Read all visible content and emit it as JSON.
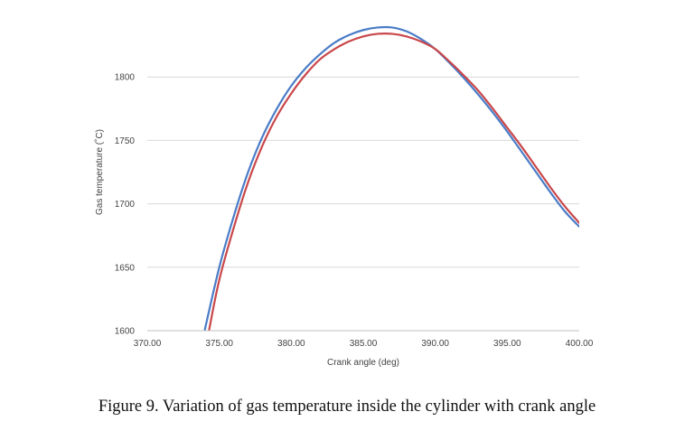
{
  "caption": "Figure 9.  Variation of gas temperature inside the cylinder with crank angle",
  "chart_data": {
    "type": "line",
    "title": "",
    "xlabel": "Crank angle (deg)",
    "ylabel": "Gas temperature (˚C)",
    "xlim": [
      370,
      400
    ],
    "ylim": [
      1600,
      1850
    ],
    "x_ticks": [
      "370.00",
      "375.00",
      "380.00",
      "385.00",
      "390.00",
      "395.00",
      "400.00"
    ],
    "y_ticks": [
      "1600",
      "1650",
      "1700",
      "1750",
      "1800"
    ],
    "grid": "horizontal",
    "legend": "none",
    "series": [
      {
        "color": "#4a7cc7",
        "x": [
          374.0,
          375.0,
          376.0,
          377.0,
          378.0,
          379.0,
          380.0,
          381.0,
          382.0,
          383.0,
          384.0,
          385.0,
          386.0,
          387.0,
          388.0,
          389.0,
          390.0,
          391.0,
          392.0,
          393.0,
          394.0,
          395.0,
          396.0,
          397.0,
          398.0,
          399.0,
          400.0
        ],
        "y": [
          1601.0,
          1650.0,
          1690.0,
          1725.0,
          1753.0,
          1775.0,
          1793.0,
          1807.0,
          1818.0,
          1827.0,
          1833.0,
          1837.0,
          1839.0,
          1839.0,
          1836.0,
          1830.0,
          1822.0,
          1811.0,
          1799.0,
          1786.0,
          1772.0,
          1757.0,
          1741.0,
          1725.0,
          1709.0,
          1694.0,
          1682.0
        ]
      },
      {
        "color": "#c9474a",
        "x": [
          374.3,
          375.0,
          376.0,
          377.0,
          378.0,
          379.0,
          380.0,
          381.0,
          382.0,
          383.0,
          384.0,
          385.0,
          386.0,
          387.0,
          388.0,
          389.0,
          390.0,
          391.0,
          392.0,
          393.0,
          394.0,
          395.0,
          396.0,
          397.0,
          398.0,
          399.0,
          400.0
        ],
        "y": [
          1601.0,
          1640.0,
          1681.0,
          1717.0,
          1746.0,
          1769.0,
          1787.0,
          1802.0,
          1814.0,
          1822.0,
          1828.0,
          1832.0,
          1834.0,
          1834.0,
          1832.0,
          1828.0,
          1822.0,
          1812.0,
          1801.0,
          1789.0,
          1775.0,
          1760.0,
          1745.0,
          1729.0,
          1713.0,
          1698.0,
          1685.0
        ]
      }
    ]
  }
}
